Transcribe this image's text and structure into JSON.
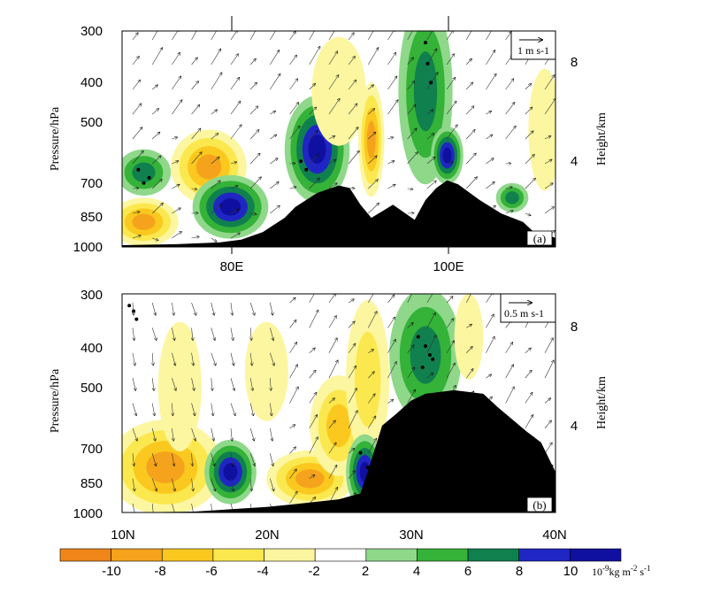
{
  "chart_data": [
    {
      "type": "heatmap",
      "panel_label": "(a)",
      "x_axis": {
        "ticks": [
          "80E",
          "100E"
        ],
        "range": [
          70,
          110
        ]
      },
      "y_left": {
        "label": "Pressure/hPa",
        "ticks": [
          "300",
          "400",
          "500",
          "700",
          "850",
          "1000"
        ],
        "range": [
          1000,
          300
        ]
      },
      "y_right": {
        "label": "Height/km",
        "ticks": [
          "8",
          "4"
        ]
      },
      "reference_vector": "1 m s-1",
      "terrain": {
        "x": [
          70,
          75,
          79,
          81,
          83,
          85,
          86,
          88,
          90,
          91,
          92,
          93,
          94,
          95,
          97,
          98,
          99,
          100,
          101,
          103,
          105,
          107,
          108,
          110
        ],
        "p": [
          990,
          985,
          975,
          960,
          920,
          850,
          800,
          740,
          710,
          720,
          790,
          850,
          820,
          790,
          860,
          770,
          720,
          690,
          705,
          770,
          830,
          870,
          920,
          950
        ]
      },
      "blobs": [
        {
          "x": 72,
          "p": 870,
          "rx": 3.2,
          "rp": 110,
          "value": -8
        },
        {
          "x": 78,
          "p": 640,
          "rx": 3.5,
          "rp": 120,
          "value": -9
        },
        {
          "x": 80,
          "p": 800,
          "rx": 3.5,
          "rp": 130,
          "value": 11
        },
        {
          "x": 72,
          "p": 660,
          "rx": 2.5,
          "rp": 80,
          "value": 6
        },
        {
          "x": 88,
          "p": 580,
          "rx": 3,
          "rp": 150,
          "value": 11
        },
        {
          "x": 93,
          "p": 550,
          "rx": 1.2,
          "rp": 150,
          "value": -8
        },
        {
          "x": 98,
          "p": 420,
          "rx": 2.5,
          "rp": 170,
          "value": 6
        },
        {
          "x": 100,
          "p": 600,
          "rx": 1.5,
          "rp": 90,
          "value": 10
        },
        {
          "x": 106,
          "p": 760,
          "rx": 1.5,
          "rp": 60,
          "value": 6
        },
        {
          "x": 109,
          "p": 520,
          "rx": 1.5,
          "rp": 150,
          "value": -3
        },
        {
          "x": 90,
          "p": 420,
          "rx": 2.5,
          "rp": 110,
          "value": -3
        }
      ],
      "stipple": {
        "x": [
          71.5,
          72,
          72.5,
          98,
          98.2,
          98.5,
          86.5,
          87
        ],
        "p": [
          650,
          700,
          680,
          320,
          360,
          400,
          620,
          650
        ]
      }
    },
    {
      "type": "heatmap",
      "panel_label": "(b)",
      "x_axis": {
        "ticks": [
          "10N",
          "20N",
          "30N",
          "40N"
        ],
        "range": [
          10,
          40
        ]
      },
      "y_left": {
        "label": "Pressure/hPa",
        "ticks": [
          "300",
          "400",
          "500",
          "700",
          "850",
          "1000"
        ],
        "range": [
          1000,
          300
        ]
      },
      "y_right": {
        "label": "Height/km",
        "ticks": [
          "8",
          "4"
        ]
      },
      "reference_vector": "0.5 m s-1",
      "terrain": {
        "x": [
          10,
          15,
          20,
          22,
          25,
          26.5,
          27,
          28,
          29,
          30,
          31,
          33,
          35,
          36,
          38,
          39,
          40
        ],
        "p": [
          1000,
          995,
          970,
          955,
          930,
          900,
          800,
          620,
          580,
          540,
          520,
          510,
          520,
          560,
          640,
          680,
          800
        ]
      },
      "blobs": [
        {
          "x": 13,
          "p": 780,
          "rx": 4,
          "rp": 180,
          "value": -8
        },
        {
          "x": 14,
          "p": 500,
          "rx": 1.5,
          "rp": 150,
          "value": -3
        },
        {
          "x": 17.5,
          "p": 800,
          "rx": 1.8,
          "rp": 130,
          "value": 11
        },
        {
          "x": 20,
          "p": 460,
          "rx": 1.5,
          "rp": 110,
          "value": -3
        },
        {
          "x": 23,
          "p": 830,
          "rx": 3,
          "rp": 120,
          "value": -8
        },
        {
          "x": 25,
          "p": 620,
          "rx": 2,
          "rp": 150,
          "value": -6
        },
        {
          "x": 27,
          "p": 480,
          "rx": 1.5,
          "rp": 170,
          "value": -4
        },
        {
          "x": 31,
          "p": 420,
          "rx": 2.5,
          "rp": 130,
          "value": 6
        },
        {
          "x": 26.8,
          "p": 800,
          "rx": 1.3,
          "rp": 150,
          "value": 11
        },
        {
          "x": 34,
          "p": 380,
          "rx": 1,
          "rp": 80,
          "value": -3
        }
      ],
      "stipple": {
        "x": [
          10.5,
          10.8,
          11,
          30.5,
          31,
          31.3,
          30.8,
          31.5,
          26.5,
          27
        ],
        "p": [
          320,
          330,
          345,
          380,
          400,
          420,
          450,
          430,
          720,
          780
        ]
      }
    }
  ],
  "colorbar": {
    "labels": [
      "-10",
      "-8",
      "-6",
      "-4",
      "-2",
      "2",
      "4",
      "6",
      "8",
      "10"
    ],
    "colors": [
      "#f08519",
      "#f5a31c",
      "#fac81e",
      "#fbe84e",
      "#fcf6a0",
      "#ffffff",
      "#8fd88a",
      "#35b238",
      "#10804f",
      "#2026c4",
      "#1010a0"
    ],
    "units": "10-9kg m-2 s-1"
  }
}
